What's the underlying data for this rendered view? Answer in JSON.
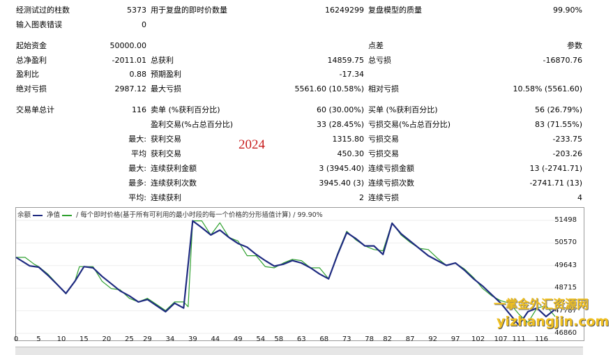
{
  "stats": {
    "bars_label": "经测试过的柱数",
    "bars_value": "5373",
    "ticks_label": "用于复盘的即时价数量",
    "ticks_value": "16249299",
    "quality_label": "复盘模型的质量",
    "quality_value": "99.90%",
    "errors_label": "输入图表错误",
    "errors_value": "0",
    "deposit_label": "起始资金",
    "deposit_value": "50000.00",
    "spread_label": "点差",
    "spread_value": "参数",
    "net_profit_label": "总净盈利",
    "net_profit_value": "-2011.01",
    "gross_profit_label": "总获利",
    "gross_profit_value": "14859.75",
    "gross_loss_label": "总亏损",
    "gross_loss_value": "-16870.76",
    "profit_factor_label": "盈利比",
    "profit_factor_value": "0.88",
    "expected_payoff_label": "预期盈利",
    "expected_payoff_value": "-17.34",
    "abs_dd_label": "绝对亏损",
    "abs_dd_value": "2987.12",
    "max_dd_label": "最大亏损",
    "max_dd_value": "5561.60 (10.58%)",
    "rel_dd_label": "相对亏损",
    "rel_dd_value": "10.58% (5561.60)",
    "total_trades_label": "交易单总计",
    "total_trades_value": "116",
    "short_label": "卖单 (%获利百分比)",
    "short_value": "60 (30.00%)",
    "long_label": "买单 (%获利百分比)",
    "long_value": "56 (26.79%)",
    "profit_trades_label": "盈利交易(%占总百分比)",
    "profit_trades_value": "33 (28.45%)",
    "loss_trades_label": "亏损交易(%占总百分比)",
    "loss_trades_value": "83 (71.55%)",
    "largest_prefix": "最大:",
    "largest_profit_label": "获利交易",
    "largest_profit_value": "1315.80",
    "largest_loss_label": "亏损交易",
    "largest_loss_value": "-233.75",
    "average_prefix": "平均",
    "avg_profit_label": "获利交易",
    "avg_profit_value": "450.30",
    "avg_loss_label": "亏损交易",
    "avg_loss_value": "-203.26",
    "max_prefix": "最大:",
    "max_cons_wins_label": "连续获利金额",
    "max_cons_wins_value": "3 (3945.40)",
    "max_cons_losses_label": "连续亏损金额",
    "max_cons_losses_value": "13 (-2741.71)",
    "maximal_prefix": "最多:",
    "maximal_cons_profit_label": "连续获利次数",
    "maximal_cons_profit_value": "3945.40 (3)",
    "maximal_cons_loss_label": "连续亏损次数",
    "maximal_cons_loss_value": "-2741.71 (13)",
    "avg_cons_prefix": "平均:",
    "avg_cons_wins_label": "连续获利",
    "avg_cons_wins_value": "2",
    "avg_cons_losses_label": "连续亏损",
    "avg_cons_losses_value": "4"
  },
  "year_annotation": "2024",
  "chart": {
    "legend_balance": "余额",
    "legend_equity": "净值",
    "title_rest": "/ 每个即时价格(基于所有可利用的最小时段的每一个价格的分形插值计算) / 99.90%"
  },
  "watermark": {
    "line1": "一掌金外汇资源网",
    "line2": "yizhangjin.com"
  },
  "chart_data": {
    "type": "line",
    "y_ticks": [
      46860,
      47787,
      48715,
      49643,
      50570,
      51498
    ],
    "x_ticks": [
      0,
      5,
      10,
      15,
      20,
      25,
      29,
      34,
      39,
      44,
      49,
      54,
      58,
      63,
      68,
      73,
      78,
      82,
      87,
      92,
      97,
      102,
      107,
      111,
      116
    ],
    "ylim": [
      46860,
      51498
    ],
    "xlim": [
      0,
      119
    ],
    "series": [
      {
        "name": "余额",
        "color": "#1e2a80",
        "x": [
          0,
          3,
          5,
          7,
          9,
          11,
          13,
          15,
          17,
          19,
          21,
          23,
          25,
          27,
          29,
          31,
          33,
          35,
          37,
          39,
          41,
          43,
          45,
          47,
          49,
          51,
          53,
          55,
          57,
          59,
          61,
          63,
          65,
          67,
          69,
          71,
          73,
          75,
          77,
          79,
          81,
          83,
          85,
          87,
          89,
          91,
          93,
          95,
          97,
          99,
          101,
          103,
          105,
          107,
          109,
          111,
          113,
          115,
          117,
          119
        ],
        "y": [
          49980,
          49630,
          49580,
          49250,
          48880,
          48500,
          49000,
          49600,
          49550,
          49200,
          48900,
          48600,
          48400,
          48150,
          48250,
          48000,
          47750,
          48100,
          47900,
          51480,
          51200,
          50900,
          51100,
          50800,
          50550,
          50400,
          50100,
          49850,
          49620,
          49700,
          49850,
          49750,
          49550,
          49300,
          49100,
          50100,
          51000,
          50750,
          50450,
          50450,
          50100,
          51380,
          50950,
          50650,
          50350,
          50050,
          49850,
          49650,
          49750,
          49450,
          49100,
          48800,
          48450,
          48100,
          47650,
          47200,
          47750,
          47900,
          47550,
          47850
        ]
      },
      {
        "name": "净值",
        "color": "#2ea02e",
        "x": [
          0,
          2,
          4,
          5,
          7,
          9,
          11,
          13,
          14,
          15,
          17,
          19,
          21,
          23,
          25,
          27,
          29,
          31,
          33,
          35,
          37,
          38,
          39,
          41,
          43,
          45,
          47,
          49,
          51,
          53,
          55,
          57,
          59,
          61,
          63,
          65,
          67,
          69,
          71,
          73,
          75,
          77,
          79,
          81,
          83,
          85,
          87,
          89,
          91,
          93,
          95,
          97,
          99,
          101,
          103,
          105,
          107,
          109,
          111,
          113,
          115,
          117,
          119
        ],
        "y": [
          49980,
          49980,
          49700,
          49600,
          49300,
          48900,
          48480,
          49000,
          49600,
          49600,
          49600,
          49000,
          48700,
          48650,
          48300,
          48150,
          48300,
          48050,
          47800,
          48150,
          48150,
          47950,
          51480,
          51480,
          50900,
          51400,
          50800,
          50650,
          50050,
          50050,
          49600,
          49550,
          49750,
          49900,
          49850,
          49550,
          49550,
          49100,
          50150,
          51050,
          50700,
          50450,
          50300,
          50250,
          51400,
          50900,
          50600,
          50350,
          50300,
          49950,
          49650,
          49750,
          49500,
          49150,
          48700,
          48400,
          48200,
          48100,
          47650,
          47300,
          47900,
          48000,
          47550
        ]
      }
    ]
  }
}
